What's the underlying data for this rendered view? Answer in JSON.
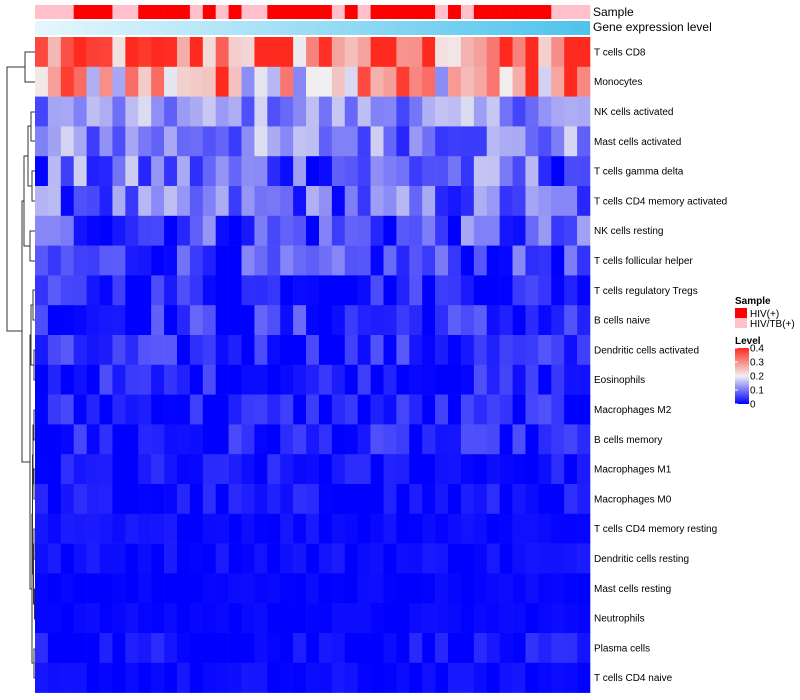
{
  "chart_data": {
    "type": "heatmap",
    "rows": [
      "T cells CD8",
      "Monocytes",
      "NK cells activated",
      "Mast cells activated",
      "T cells gamma delta",
      "T cells CD4 memory activated",
      "NK cells resting",
      "T cells follicular helper",
      "T cells regulatory  Tregs",
      "B cells naive",
      "Dendritic cells activated",
      "Eosinophils",
      "Macrophages M2",
      "B cells memory",
      "Macrophages M1",
      "Macrophages M0",
      "T cells CD4 memory resting",
      "Dendritic cells resting",
      "Mast cells resting",
      "Neutrophils",
      "Plasma cells",
      "T cells CD4 naive"
    ],
    "n_columns": 43,
    "row_mean_levels": [
      0.32,
      0.27,
      0.12,
      0.11,
      0.08,
      0.08,
      0.06,
      0.05,
      0.03,
      0.03,
      0.03,
      0.02,
      0.02,
      0.02,
      0.01,
      0.01,
      0.01,
      0.01,
      0.005,
      0.005,
      0.01,
      0.005
    ],
    "row_variability": [
      0.1,
      0.1,
      0.04,
      0.05,
      0.06,
      0.05,
      0.05,
      0.04,
      0.03,
      0.04,
      0.03,
      0.03,
      0.03,
      0.03,
      0.02,
      0.02,
      0.01,
      0.01,
      0.005,
      0.005,
      0.02,
      0.01
    ],
    "sample_track": {
      "label": "Sample",
      "values": [
        "HIV/TB(+)",
        "HIV/TB(+)",
        "HIV/TB(+)",
        "HIV(+)",
        "HIV(+)",
        "HIV(+)",
        "HIV/TB(+)",
        "HIV/TB(+)",
        "HIV(+)",
        "HIV(+)",
        "HIV(+)",
        "HIV(+)",
        "HIV/TB(+)",
        "HIV(+)",
        "HIV/TB(+)",
        "HIV(+)",
        "HIV/TB(+)",
        "HIV/TB(+)",
        "HIV(+)",
        "HIV(+)",
        "HIV(+)",
        "HIV(+)",
        "HIV(+)",
        "HIV/TB(+)",
        "HIV(+)",
        "HIV/TB(+)",
        "HIV(+)",
        "HIV(+)",
        "HIV(+)",
        "HIV(+)",
        "HIV(+)",
        "HIV/TB(+)",
        "HIV(+)",
        "HIV/TB(+)",
        "HIV(+)",
        "HIV(+)",
        "HIV(+)",
        "HIV(+)",
        "HIV(+)",
        "HIV(+)",
        "HIV/TB(+)",
        "HIV/TB(+)",
        "HIV/TB(+)"
      ]
    },
    "expression_track": {
      "label": "Gene expression level"
    },
    "legend": {
      "sample_title": "Sample",
      "sample_entries": [
        {
          "label": "HIV(+)",
          "color": "#ff0000"
        },
        {
          "label": "HIV/TB(+)",
          "color": "#ffc0cb"
        }
      ],
      "level_title": "Level",
      "level_ticks": [
        {
          "value": 0.4,
          "label": "0.4"
        },
        {
          "value": 0.3,
          "label": "0.3"
        },
        {
          "value": 0.2,
          "label": "0.2"
        },
        {
          "value": 0.1,
          "label": "0.1"
        },
        {
          "value": 0,
          "label": "0"
        }
      ],
      "level_range": [
        0,
        0.4
      ]
    },
    "colors": {
      "low": "#0000ff",
      "mid": "#f0f0f0",
      "high": "#ff2a1f",
      "expression_light": "#e6f7fd",
      "expression_dark": "#4ec3ec"
    }
  }
}
